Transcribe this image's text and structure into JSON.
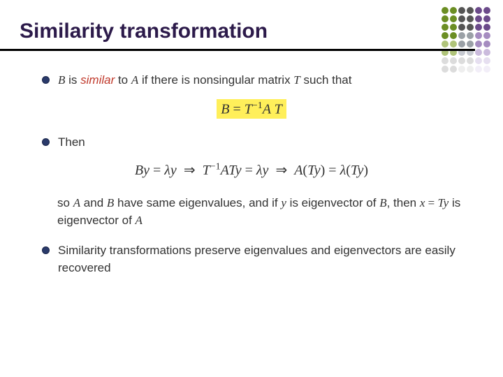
{
  "title": "Similarity transformation",
  "dot_colors": [
    [
      "#6b8e23",
      "#6b8e23",
      "#6b8e23",
      "#6b8e23",
      "#b0c47a",
      "#b0c47a",
      "#dcdcdc",
      "#dcdcdc"
    ],
    [
      "#6b8e23",
      "#6b8e23",
      "#6b8e23",
      "#6b8e23",
      "#b0c47a",
      "#b0c47a",
      "#dcdcdc",
      "#dcdcdc"
    ],
    [
      "#555555",
      "#555555",
      "#555555",
      "#9aa0a6",
      "#9aa0a6",
      "#c7cad1",
      "#dcdcdc",
      "#eeeeee"
    ],
    [
      "#555555",
      "#555555",
      "#555555",
      "#9aa0a6",
      "#9aa0a6",
      "#c7cad1",
      "#dcdcdc",
      "#eeeeee"
    ],
    [
      "#6b4a8a",
      "#6b4a8a",
      "#6b4a8a",
      "#a58cc0",
      "#a58cc0",
      "#cbbbdd",
      "#e6dff0",
      "#f2eef8"
    ],
    [
      "#6b4a8a",
      "#6b4a8a",
      "#6b4a8a",
      "#a58cc0",
      "#a58cc0",
      "#cbbbdd",
      "#e6dff0",
      "#f2eef8"
    ]
  ],
  "bullets": [
    {
      "parts": [
        {
          "t": "math-i",
          "v": "B"
        },
        {
          "t": "plain",
          "v": " is "
        },
        {
          "t": "emph",
          "v": "similar"
        },
        {
          "t": "plain",
          "v": " to "
        },
        {
          "t": "math-i",
          "v": "A"
        },
        {
          "t": "plain",
          "v": " if there is nonsingular matrix "
        },
        {
          "t": "math-i",
          "v": "T"
        },
        {
          "t": "plain",
          "v": " such that"
        }
      ],
      "equation_hl": "B = T^{-1} A T"
    },
    {
      "parts": [
        {
          "t": "plain",
          "v": "Then"
        }
      ],
      "equation": "By = λy  ⇒  T^{-1}ATy = λy  ⇒  A(Ty) = λ(Ty)",
      "after_parts": [
        {
          "t": "plain",
          "v": "so "
        },
        {
          "t": "math-i",
          "v": "A"
        },
        {
          "t": "plain",
          "v": " and "
        },
        {
          "t": "math-i",
          "v": "B"
        },
        {
          "t": "plain",
          "v": " have same eigenvalues, and if "
        },
        {
          "t": "math-i",
          "v": "y"
        },
        {
          "t": "plain",
          "v": " is eigenvector of "
        },
        {
          "t": "math-i",
          "v": "B"
        },
        {
          "t": "plain",
          "v": ", then "
        },
        {
          "t": "math-i",
          "v": "x"
        },
        {
          "t": "math-r",
          "v": " = "
        },
        {
          "t": "math-i",
          "v": "Ty"
        },
        {
          "t": "plain",
          "v": " is eigenvector of "
        },
        {
          "t": "math-i",
          "v": "A"
        }
      ]
    },
    {
      "parts": [
        {
          "t": "plain",
          "v": "Similarity transformations preserve eigenvalues and eigenvectors are easily recovered"
        }
      ]
    }
  ]
}
